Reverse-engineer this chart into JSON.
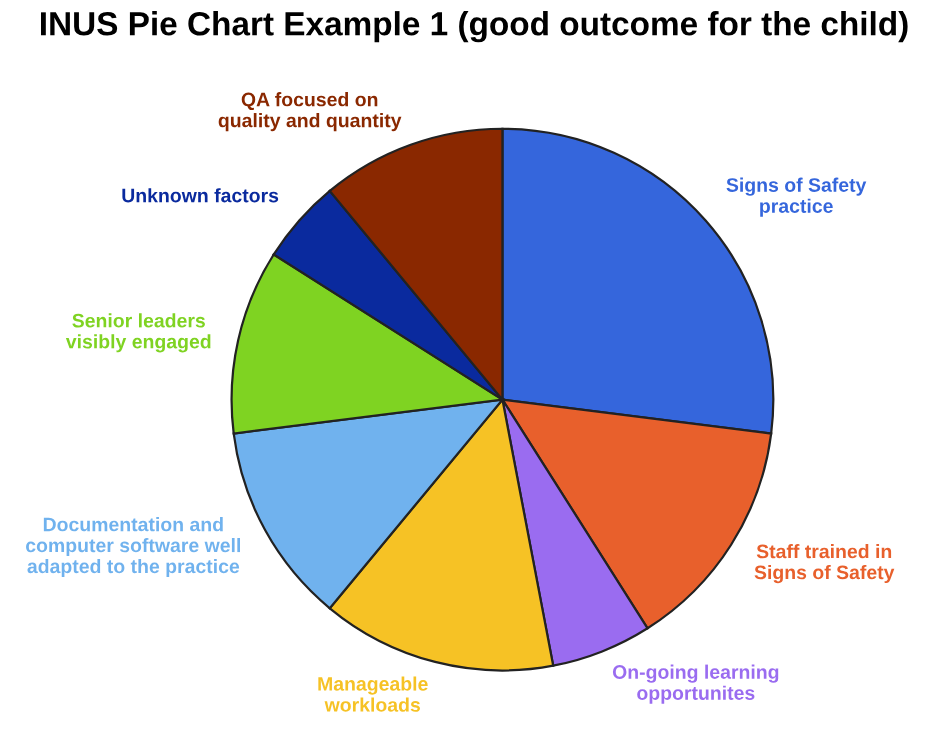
{
  "chart_data": {
    "type": "pie",
    "title": "INUS Pie Chart Example 1 (good outcome for the child)",
    "categories": [
      "Signs of Safety\npractice",
      "Staff trained in\nSigns of Safety",
      "On-going learning\nopportunites",
      "Manageable\nworkloads",
      "Documentation and\ncomputer software well\nadapted to the practice",
      "Senior leaders\nvisibly engaged",
      "Unknown factors",
      "QA focused on\nquality and quantity"
    ],
    "values": [
      27,
      14,
      6,
      14,
      12,
      11,
      5,
      11
    ],
    "colors": [
      "#3566dc",
      "#e8602c",
      "#9a6cf0",
      "#f6c225",
      "#70b2ee",
      "#7fd322",
      "#0a2a9e",
      "#8a2800"
    ]
  }
}
